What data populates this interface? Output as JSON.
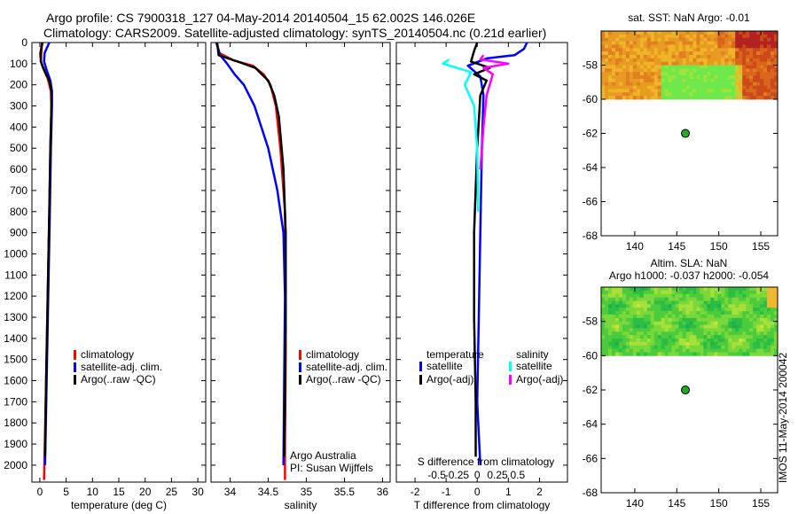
{
  "header": {
    "line1": "Argo profile: CS 7900318_127 04-May-2014 20140504_15 62.002S 146.026E",
    "line2": "Climatology: CARS2009. Satellite-adjusted climatology: synTS_20140504.nc (0.21d earlier)"
  },
  "side_label": "IMOS 11-May-2014 200042",
  "colors": {
    "climatology": "#ff0000",
    "satellite": "#0000ff",
    "argo": "#000000",
    "sal_satellite": "#00ffff",
    "sal_argo": "#ff00ff"
  },
  "chart_data": [
    {
      "type": "line",
      "id": "temperature",
      "xlabel": "temperature (deg C)",
      "xlim": [
        -1.5,
        31.5
      ],
      "ylim": [
        2080,
        0
      ],
      "xticks": [
        0,
        5,
        10,
        15,
        20,
        25,
        30
      ],
      "yticks": [
        0,
        100,
        200,
        300,
        400,
        500,
        600,
        700,
        800,
        900,
        1000,
        1100,
        1200,
        1300,
        1400,
        1500,
        1600,
        1700,
        1800,
        1900,
        2000
      ],
      "legend": [
        "climatology",
        "satellite-adj. clim.",
        "Argo(..raw -QC)"
      ],
      "series": [
        {
          "name": "climatology",
          "color": "#ff0000",
          "x": [
            0.4,
            0.3,
            0.2,
            0.6,
            1.5,
            2.1,
            2.2,
            2.0,
            1.8,
            1.5,
            1.2,
            0.8
          ],
          "y": [
            0,
            50,
            90,
            120,
            170,
            230,
            300,
            500,
            800,
            1200,
            1600,
            2070
          ]
        },
        {
          "name": "satellite-adj. clim.",
          "color": "#0000ff",
          "x": [
            1.8,
            0.9,
            0.8,
            1.3,
            2.0,
            2.3,
            2.3,
            2.1,
            1.9,
            1.6,
            1.3,
            1.0
          ],
          "y": [
            0,
            50,
            90,
            130,
            180,
            230,
            300,
            500,
            800,
            1200,
            1600,
            2000
          ]
        },
        {
          "name": "Argo(..raw -QC)",
          "color": "#000000",
          "x": [
            0.5,
            0.1,
            0.2,
            1.0,
            1.8,
            2.2,
            2.2,
            2.0,
            1.8,
            1.5,
            1.2,
            1.0
          ],
          "y": [
            0,
            50,
            90,
            140,
            180,
            230,
            300,
            500,
            800,
            1200,
            1600,
            1960
          ]
        }
      ]
    },
    {
      "type": "line",
      "id": "salinity",
      "xlabel": "salinity",
      "xlim": [
        33.75,
        36.1
      ],
      "ylim": [
        2080,
        0
      ],
      "xticks": [
        34,
        34.5,
        35,
        35.5,
        36
      ],
      "legend": [
        "climatology",
        "satellite-adj. clim.",
        "Argo(..raw -QC)"
      ],
      "annotation": [
        "Argo Australia",
        "PI: Susan Wijffels"
      ],
      "series": [
        {
          "name": "climatology",
          "color": "#ff0000",
          "x": [
            33.82,
            33.86,
            34.05,
            34.3,
            34.44,
            34.53,
            34.6,
            34.66,
            34.72,
            34.73,
            34.73,
            34.72,
            34.72
          ],
          "y": [
            0,
            50,
            85,
            110,
            150,
            200,
            300,
            500,
            800,
            1100,
            1500,
            1900,
            2070
          ]
        },
        {
          "name": "satellite-adj. clim.",
          "color": "#0000ff",
          "x": [
            33.82,
            33.87,
            33.96,
            34.06,
            34.18,
            34.32,
            34.5,
            34.62,
            34.7,
            34.72,
            34.71,
            34.7
          ],
          "y": [
            0,
            60,
            100,
            150,
            200,
            300,
            500,
            700,
            900,
            1200,
            1600,
            2000
          ]
        },
        {
          "name": "Argo(..raw -QC)",
          "color": "#000000",
          "x": [
            33.83,
            33.85,
            34.1,
            34.33,
            34.5,
            34.58,
            34.64,
            34.7,
            34.73,
            34.73,
            34.72,
            34.71
          ],
          "y": [
            0,
            60,
            90,
            120,
            180,
            250,
            350,
            600,
            900,
            1300,
            1700,
            1960
          ]
        }
      ]
    },
    {
      "type": "line",
      "id": "difference",
      "xlabel": "T difference from climatology",
      "xlabel_top": "S difference from climatology",
      "xlim": [
        -2.6,
        2.9
      ],
      "ylim": [
        2080,
        0
      ],
      "xticks": [
        -2,
        -1,
        0,
        1,
        2
      ],
      "xticks_top": [
        -0.5,
        -0.25,
        0,
        0.25,
        0.5
      ],
      "xticks_top_labels": [
        "-0.5",
        "-0.25",
        "0",
        "0.25",
        "0.5"
      ],
      "legend_titles": [
        "temperature",
        "salinity"
      ],
      "legend": [
        "satellite",
        "Argo(-adj)",
        "satellite",
        "Argo(-adj)"
      ],
      "series": [
        {
          "name": "satellite",
          "color": "#0000ff",
          "x": [
            1.6,
            1.5,
            1.2,
            0.3,
            -0.3,
            0.1,
            0.2,
            0.15,
            0.1,
            0.05,
            0.0,
            0.1
          ],
          "y": [
            0,
            30,
            60,
            75,
            110,
            160,
            250,
            500,
            900,
            1300,
            1700,
            2000
          ]
        },
        {
          "name": "Argo(-adj)",
          "color": "#000000",
          "x": [
            0.0,
            -0.1,
            -0.2,
            0.4,
            -0.1,
            0.3,
            0.1,
            0.0,
            -0.1,
            -0.1,
            -0.05,
            -0.05
          ],
          "y": [
            0,
            40,
            90,
            120,
            150,
            180,
            250,
            500,
            900,
            1300,
            1700,
            1960
          ]
        },
        {
          "name": "satellite",
          "color": "#00ffff",
          "x": [
            -0.9,
            -1.1,
            -0.2,
            -0.4,
            -0.1,
            0.0,
            0.02,
            0.03
          ],
          "y": [
            80,
            100,
            140,
            200,
            300,
            500,
            700,
            800
          ]
        },
        {
          "name": "Argo(-adj)",
          "color": "#ff00ff",
          "x": [
            0.2,
            0.1,
            1.0,
            0.2,
            0.5,
            0.3,
            0.2,
            0.1
          ],
          "y": [
            60,
            80,
            100,
            120,
            150,
            250,
            400,
            600
          ]
        }
      ]
    },
    {
      "type": "heatmap",
      "id": "sst_map",
      "title": "sat. SST: NaN Argo: -0.01",
      "xlim": [
        136,
        157
      ],
      "ylim": [
        -68,
        -56
      ],
      "xticks": [
        140,
        145,
        150,
        155
      ],
      "yticks": [
        -58,
        -60,
        -62,
        -64,
        -66,
        -68
      ],
      "marker": {
        "lon": 146.026,
        "lat": -62.002
      }
    },
    {
      "type": "heatmap",
      "id": "sla_map",
      "title": "Altim. SLA: NaN",
      "subtitle": "Argo h1000: -0.037 h2000: -0.054",
      "xlim": [
        136,
        157
      ],
      "ylim": [
        -68,
        -56
      ],
      "xticks": [
        140,
        145,
        150,
        155
      ],
      "yticks": [
        -58,
        -60,
        -62,
        -64,
        -66,
        -68
      ],
      "marker": {
        "lon": 146.026,
        "lat": -62.002
      }
    }
  ]
}
